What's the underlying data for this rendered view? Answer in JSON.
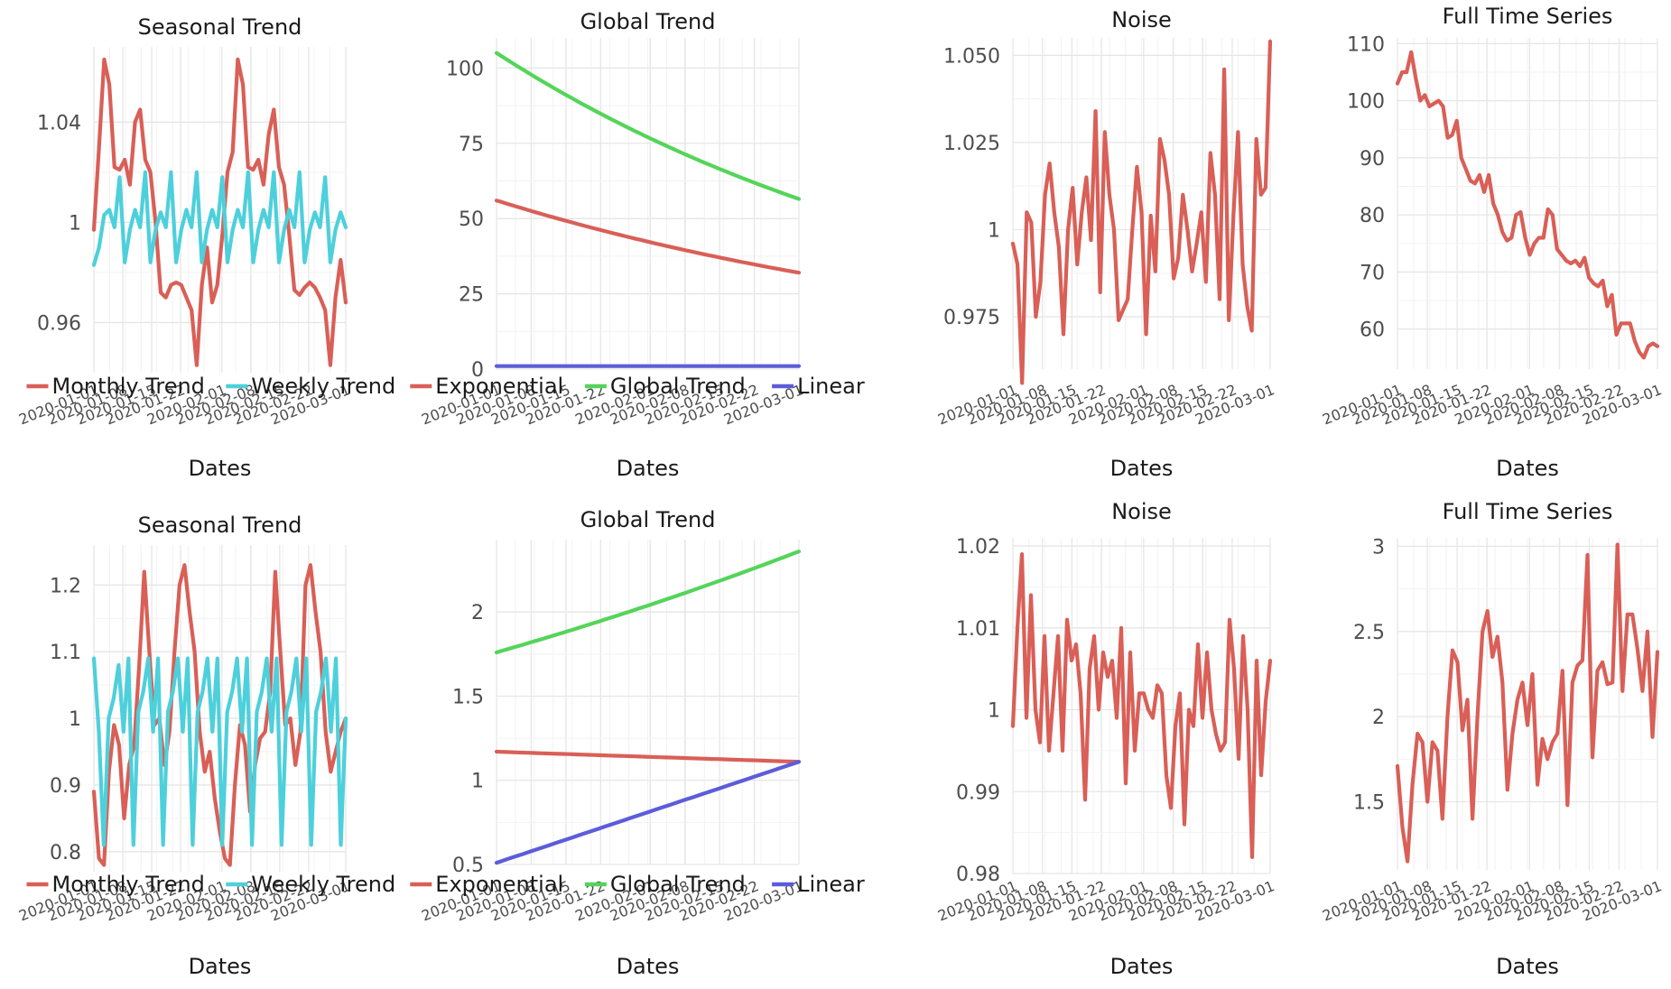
{
  "chart_data": [
    {
      "id": "seasonal-top",
      "type": "line",
      "title": "Seasonal Trend",
      "xlabel": "Dates",
      "x_ticks": [
        "2020-01-01",
        "2020-01-08",
        "2020-01-15",
        "2020-01-22",
        "2020-02-01",
        "2020-02-08",
        "2020-02-15",
        "2020-02-22",
        "2020-03-01"
      ],
      "y_ticks": [
        {
          "v": 0.96,
          "label": "0.96"
        },
        {
          "v": 1.0,
          "label": "1"
        },
        {
          "v": 1.04,
          "label": "1.04"
        }
      ],
      "ylim": [
        0.94,
        1.07
      ],
      "legend": "bottom",
      "series": [
        {
          "name": "Monthly Trend",
          "color": "#d95f57",
          "values": [
            0.997,
            1.03,
            1.065,
            1.055,
            1.022,
            1.021,
            1.025,
            1.015,
            1.04,
            1.045,
            1.025,
            1.02,
            1.0,
            0.972,
            0.97,
            0.975,
            0.976,
            0.975,
            0.97,
            0.965,
            0.943,
            0.975,
            0.99,
            0.968,
            0.975,
            0.995,
            1.02,
            1.028,
            1.065,
            1.055,
            1.022,
            1.021,
            1.025,
            1.015,
            1.035,
            1.045,
            1.022,
            1.015,
            0.995,
            0.973,
            0.971,
            0.974,
            0.976,
            0.974,
            0.97,
            0.965,
            0.943,
            0.97,
            0.985,
            0.968
          ]
        },
        {
          "name": "Weekly Trend",
          "color": "#4dd0db",
          "values": [
            0.983,
            0.99,
            1.003,
            1.005,
            0.998,
            1.018,
            0.984,
            0.997,
            1.005,
            0.998,
            1.02,
            0.984,
            0.997,
            1.004,
            0.998,
            1.02,
            0.984,
            0.997,
            1.005,
            0.998,
            1.02,
            0.984,
            0.997,
            1.005,
            0.998,
            1.018,
            0.984,
            0.997,
            1.005,
            0.998,
            1.02,
            0.984,
            0.997,
            1.005,
            0.998,
            1.02,
            0.984,
            0.997,
            1.005,
            0.998,
            1.02,
            0.984,
            0.997,
            1.004,
            0.998,
            1.018,
            0.984,
            0.997,
            1.004,
            0.998
          ]
        }
      ]
    },
    {
      "id": "global-top",
      "type": "line",
      "title": "Global Trend",
      "xlabel": "Dates",
      "x_ticks": [
        "2020-01-01",
        "2020-01-08",
        "2020-01-15",
        "2020-01-22",
        "2020-02-01",
        "2020-02-08",
        "2020-02-15",
        "2020-02-22",
        "2020-03-01"
      ],
      "y_ticks": [
        {
          "v": 0,
          "label": "0"
        },
        {
          "v": 25,
          "label": "25"
        },
        {
          "v": 50,
          "label": "50"
        },
        {
          "v": 75,
          "label": "75"
        },
        {
          "v": 100,
          "label": "100"
        }
      ],
      "ylim": [
        0,
        110
      ],
      "legend": "bottom",
      "series": [
        {
          "name": "Exponential",
          "color": "#d95f57",
          "start": 56,
          "end": 32,
          "shape": "exp"
        },
        {
          "name": "Global Trend",
          "color": "#55d45a",
          "start": 105,
          "end": 56.5,
          "shape": "exp"
        },
        {
          "name": "Linear",
          "color": "#5c5cdb",
          "start": 1,
          "end": 1,
          "shape": "linear"
        }
      ]
    },
    {
      "id": "noise-top",
      "type": "line",
      "title": "Noise",
      "xlabel": "Dates",
      "x_ticks": [
        "2020-01-01",
        "2020-01-08",
        "2020-01-15",
        "2020-01-22",
        "2020-02-01",
        "2020-02-08",
        "2020-02-15",
        "2020-02-22",
        "2020-03-01"
      ],
      "y_ticks": [
        {
          "v": 0.975,
          "label": "0.975"
        },
        {
          "v": 1.0,
          "label": "1"
        },
        {
          "v": 1.025,
          "label": "1.025"
        },
        {
          "v": 1.05,
          "label": "1.050"
        }
      ],
      "ylim": [
        0.96,
        1.055
      ],
      "legend": "none",
      "series": [
        {
          "name": "",
          "color": "#d95f57",
          "values": [
            0.996,
            0.99,
            0.956,
            1.005,
            1.002,
            0.975,
            0.985,
            1.01,
            1.019,
            1.005,
            0.995,
            0.97,
            1.0,
            1.012,
            0.99,
            1.005,
            1.015,
            0.997,
            1.034,
            0.982,
            1.028,
            1.01,
            1.0,
            0.974,
            0.977,
            0.98,
            1.0,
            1.018,
            1.005,
            0.97,
            1.004,
            0.988,
            1.026,
            1.02,
            1.01,
            0.986,
            0.992,
            1.01,
            1.0,
            0.988,
            0.996,
            1.005,
            0.985,
            1.022,
            1.01,
            0.98,
            1.046,
            0.974,
            1.004,
            1.028,
            0.99,
            0.978,
            0.971,
            1.026,
            1.01,
            1.012,
            1.054
          ]
        }
      ]
    },
    {
      "id": "full-top",
      "type": "line",
      "title": "Full Time Series",
      "xlabel": "Dates",
      "x_ticks": [
        "2020-01-01",
        "2020-01-08",
        "2020-01-15",
        "2020-01-22",
        "2020-02-01",
        "2020-02-08",
        "2020-02-15",
        "2020-02-22",
        "2020-03-01"
      ],
      "y_ticks": [
        {
          "v": 60,
          "label": "60"
        },
        {
          "v": 70,
          "label": "70"
        },
        {
          "v": 80,
          "label": "80"
        },
        {
          "v": 90,
          "label": "90"
        },
        {
          "v": 100,
          "label": "100"
        },
        {
          "v": 110,
          "label": "110"
        }
      ],
      "ylim": [
        53,
        111
      ],
      "legend": "none",
      "series": [
        {
          "name": "",
          "color": "#d95f57",
          "values": [
            103,
            105,
            105,
            108.5,
            104,
            100,
            101,
            99,
            99.5,
            100,
            99,
            93.5,
            94,
            96.5,
            90,
            88,
            86,
            85.5,
            87,
            84,
            87,
            82,
            80,
            77,
            75.5,
            76,
            80,
            80.5,
            76,
            73,
            75,
            76,
            76,
            81,
            80,
            74,
            73,
            72,
            71.5,
            72,
            71,
            72.5,
            69,
            68,
            67.5,
            68.5,
            64,
            66,
            59,
            61,
            61,
            61,
            58,
            56,
            55,
            57,
            57.5,
            57
          ]
        }
      ]
    },
    {
      "id": "seasonal-bottom",
      "type": "line",
      "title": "Seasonal Trend",
      "xlabel": "Dates",
      "x_ticks": [
        "2020-01-01",
        "2020-01-08",
        "2020-01-15",
        "2020-01-22",
        "2020-02-01",
        "2020-02-08",
        "2020-02-15",
        "2020-02-22",
        "2020-03-01"
      ],
      "y_ticks": [
        {
          "v": 0.8,
          "label": "0.8"
        },
        {
          "v": 0.9,
          "label": "0.9"
        },
        {
          "v": 1.0,
          "label": "1"
        },
        {
          "v": 1.1,
          "label": "1.1"
        },
        {
          "v": 1.2,
          "label": "1.2"
        }
      ],
      "ylim": [
        0.77,
        1.26
      ],
      "legend": "bottom",
      "series": [
        {
          "name": "Monthly Trend",
          "color": "#d95f57",
          "values": [
            0.89,
            0.79,
            0.78,
            0.92,
            0.99,
            0.96,
            0.85,
            0.93,
            0.96,
            1.08,
            1.22,
            1.1,
            0.99,
            1.0,
            0.93,
            0.98,
            1.1,
            1.2,
            1.23,
            1.16,
            1.1,
            0.98,
            0.92,
            0.95,
            0.88,
            0.83,
            0.79,
            0.78,
            0.9,
            0.99,
            0.96,
            0.86,
            0.93,
            0.97,
            0.98,
            1.04,
            1.22,
            1.1,
            0.99,
            1.0,
            0.93,
            0.98,
            1.2,
            1.23,
            1.16,
            1.1,
            0.98,
            0.92,
            0.95,
            0.98,
            1.0
          ]
        },
        {
          "name": "Weekly Trend",
          "color": "#4dd0db",
          "values": [
            1.09,
            0.98,
            0.81,
            1.0,
            1.03,
            1.08,
            0.98,
            1.09,
            0.81,
            1.01,
            1.04,
            1.09,
            0.98,
            1.09,
            0.81,
            1.01,
            1.04,
            1.09,
            0.98,
            1.09,
            0.81,
            1.01,
            1.04,
            1.09,
            0.98,
            1.09,
            0.81,
            1.01,
            1.04,
            1.09,
            0.98,
            1.09,
            0.81,
            1.01,
            1.04,
            1.09,
            0.98,
            1.09,
            0.81,
            1.01,
            1.04,
            1.09,
            0.98,
            1.09,
            0.81,
            1.01,
            1.04,
            1.09,
            0.98,
            1.09,
            0.81,
            1.0
          ]
        }
      ]
    },
    {
      "id": "global-bottom",
      "type": "line",
      "title": "Global Trend",
      "xlabel": "Dates",
      "x_ticks": [
        "2020-01-01",
        "2020-01-08",
        "2020-01-15",
        "2020-01-22",
        "2020-02-01",
        "2020-02-08",
        "2020-02-15",
        "2020-02-22",
        "2020-03-01"
      ],
      "y_ticks": [
        {
          "v": 0.5,
          "label": "0.5"
        },
        {
          "v": 1.0,
          "label": "1"
        },
        {
          "v": 1.5,
          "label": "1.5"
        },
        {
          "v": 2.0,
          "label": "2"
        }
      ],
      "ylim": [
        0.5,
        2.43
      ],
      "legend": "bottom",
      "series": [
        {
          "name": "Exponential",
          "color": "#d95f57",
          "start": 1.17,
          "end": 1.11,
          "shape": "exp"
        },
        {
          "name": "Global Trend",
          "color": "#55d45a",
          "start": 1.76,
          "end": 2.36,
          "shape": "exp"
        },
        {
          "name": "Linear",
          "color": "#5c5cdb",
          "start": 0.51,
          "end": 1.11,
          "shape": "linear"
        }
      ]
    },
    {
      "id": "noise-bottom",
      "type": "line",
      "title": "Noise",
      "xlabel": "Dates",
      "x_ticks": [
        "2020-01-01",
        "2020-01-08",
        "2020-01-15",
        "2020-01-22",
        "2020-02-01",
        "2020-02-08",
        "2020-02-15",
        "2020-02-22",
        "2020-03-01"
      ],
      "y_ticks": [
        {
          "v": 0.98,
          "label": "0.98"
        },
        {
          "v": 0.99,
          "label": "0.99"
        },
        {
          "v": 1.0,
          "label": "1"
        },
        {
          "v": 1.01,
          "label": "1.01"
        },
        {
          "v": 1.02,
          "label": "1.02"
        }
      ],
      "ylim": [
        0.98,
        1.021
      ],
      "legend": "none",
      "series": [
        {
          "name": "",
          "color": "#d95f57",
          "values": [
            0.998,
            1.01,
            1.019,
            0.999,
            1.014,
            1.0,
            0.996,
            1.009,
            0.995,
            1.002,
            1.009,
            0.995,
            1.011,
            1.006,
            1.008,
            1.002,
            0.989,
            1.005,
            1.009,
            1.0,
            1.007,
            1.004,
            1.006,
            0.999,
            1.01,
            0.991,
            1.007,
            0.995,
            1.002,
            1.002,
            1.0,
            0.999,
            1.003,
            1.002,
            0.992,
            0.988,
            0.998,
            1.002,
            0.986,
            1.0,
            0.998,
            1.008,
            0.999,
            1.007,
            1.0,
            0.997,
            0.995,
            0.996,
            1.011,
            1.005,
            0.994,
            1.009,
            1.0,
            0.982,
            1.006,
            0.992,
            1.001,
            1.006
          ]
        }
      ]
    },
    {
      "id": "full-bottom",
      "type": "line",
      "title": "Full Time Series",
      "xlabel": "Dates",
      "x_ticks": [
        "2020-01-01",
        "2020-01-08",
        "2020-01-15",
        "2020-01-22",
        "2020-02-01",
        "2020-02-08",
        "2020-02-15",
        "2020-02-22",
        "2020-03-01"
      ],
      "y_ticks": [
        {
          "v": 1.5,
          "label": "1.5"
        },
        {
          "v": 2.0,
          "label": "2"
        },
        {
          "v": 2.5,
          "label": "2.5"
        },
        {
          "v": 3.0,
          "label": "3"
        }
      ],
      "ylim": [
        1.1,
        3.05
      ],
      "legend": "none",
      "series": [
        {
          "name": "",
          "color": "#d95f57",
          "values": [
            1.71,
            1.35,
            1.15,
            1.6,
            1.9,
            1.85,
            1.5,
            1.85,
            1.8,
            1.4,
            2.0,
            2.39,
            2.32,
            1.92,
            2.1,
            1.4,
            2.0,
            2.5,
            2.62,
            2.35,
            2.47,
            2.2,
            1.57,
            1.9,
            2.1,
            2.2,
            1.95,
            2.25,
            1.6,
            1.87,
            1.75,
            1.85,
            1.9,
            2.27,
            1.48,
            2.2,
            2.3,
            2.33,
            2.95,
            1.76,
            2.27,
            2.32,
            2.19,
            2.2,
            3.01,
            2.15,
            2.6,
            2.6,
            2.4,
            2.15,
            2.5,
            1.88,
            2.38
          ]
        }
      ]
    }
  ]
}
